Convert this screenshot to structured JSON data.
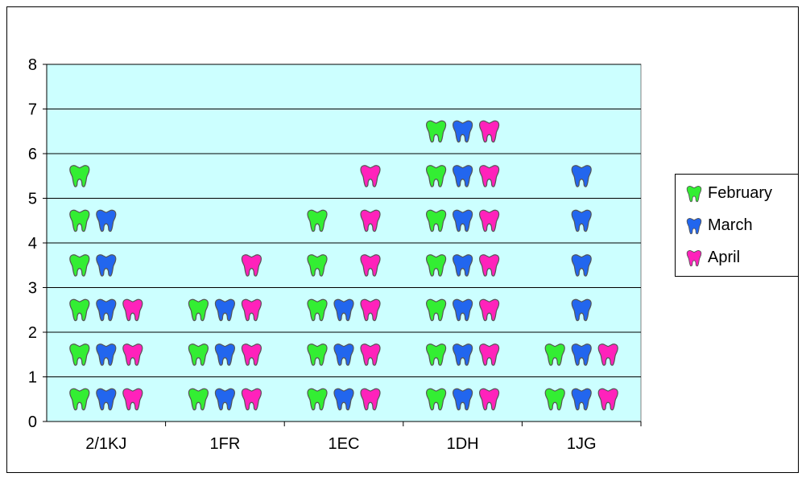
{
  "chart_data": {
    "type": "bar",
    "title": "",
    "xlabel": "",
    "ylabel": "",
    "categories": [
      "2/1KJ",
      "1FR",
      "1EC",
      "1DH",
      "1JG"
    ],
    "series": [
      {
        "name": "February",
        "values": [
          6,
          3,
          5,
          7,
          2
        ]
      },
      {
        "name": "March",
        "values": [
          5,
          3,
          3,
          7,
          6
        ]
      },
      {
        "name": "April",
        "values": [
          3,
          4,
          6,
          7,
          2
        ]
      }
    ],
    "ylim": [
      0,
      8
    ],
    "yticks": [
      "0",
      "1",
      "2",
      "3",
      "4",
      "5",
      "6",
      "7",
      "8"
    ],
    "grid": true,
    "legend_position": "right",
    "plot_background": "#ccffff",
    "marker": "tooth-icon",
    "colors": {
      "February": "#33ee33",
      "March": "#2266ee",
      "April": "#ff22bb"
    }
  }
}
